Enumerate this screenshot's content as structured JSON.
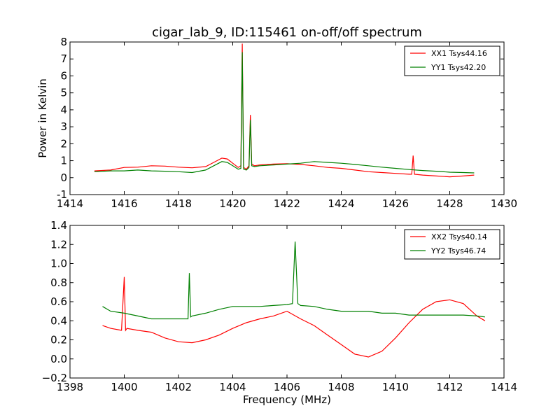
{
  "chart_data": [
    {
      "type": "line",
      "title": "cigar_lab_9, ID:115461 on-off/off spectrum",
      "xlabel": "",
      "ylabel": "Power in Kelvin",
      "xlim": [
        1414,
        1430
      ],
      "ylim": [
        -1,
        8
      ],
      "xticks": [
        "1414",
        "1416",
        "1418",
        "1420",
        "1422",
        "1424",
        "1426",
        "1428",
        "1430"
      ],
      "yticks": [
        "-1",
        "0",
        "1",
        "2",
        "3",
        "4",
        "5",
        "6",
        "7",
        "8"
      ],
      "grid": false,
      "legend": "top-right",
      "series": [
        {
          "name": "XX1 Tsys44.16",
          "color": "#ff0000",
          "x": [
            1414.9,
            1415.5,
            1416.0,
            1416.5,
            1417.0,
            1417.5,
            1418.0,
            1418.5,
            1419.0,
            1419.3,
            1419.6,
            1419.8,
            1420.0,
            1420.2,
            1420.3,
            1420.35,
            1420.4,
            1420.5,
            1420.6,
            1420.65,
            1420.7,
            1420.8,
            1421.0,
            1421.5,
            1422.0,
            1422.5,
            1423.0,
            1423.5,
            1424.0,
            1424.5,
            1425.0,
            1425.5,
            1426.0,
            1426.5,
            1426.6,
            1426.65,
            1426.7,
            1427.0,
            1427.5,
            1428.0,
            1428.5,
            1428.9
          ],
          "y": [
            0.4,
            0.45,
            0.6,
            0.62,
            0.7,
            0.68,
            0.62,
            0.58,
            0.65,
            0.9,
            1.15,
            1.1,
            0.85,
            0.6,
            0.7,
            7.9,
            0.6,
            0.5,
            0.7,
            3.7,
            0.8,
            0.7,
            0.75,
            0.8,
            0.82,
            0.78,
            0.7,
            0.6,
            0.55,
            0.45,
            0.35,
            0.3,
            0.25,
            0.2,
            0.2,
            1.3,
            0.2,
            0.15,
            0.1,
            0.05,
            0.1,
            0.15
          ]
        },
        {
          "name": "YY1 Tsys42.20",
          "color": "#008000",
          "x": [
            1414.9,
            1415.5,
            1416.0,
            1416.5,
            1417.0,
            1417.5,
            1418.0,
            1418.5,
            1419.0,
            1419.3,
            1419.6,
            1419.8,
            1420.0,
            1420.2,
            1420.3,
            1420.35,
            1420.4,
            1420.5,
            1420.6,
            1420.65,
            1420.7,
            1420.8,
            1421.0,
            1421.5,
            1422.0,
            1422.5,
            1423.0,
            1423.5,
            1424.0,
            1424.5,
            1425.0,
            1425.5,
            1426.0,
            1426.5,
            1427.0,
            1427.5,
            1428.0,
            1428.5,
            1428.9
          ],
          "y": [
            0.35,
            0.4,
            0.4,
            0.45,
            0.4,
            0.38,
            0.35,
            0.3,
            0.45,
            0.7,
            0.95,
            0.9,
            0.7,
            0.5,
            0.55,
            7.4,
            0.5,
            0.45,
            0.6,
            3.4,
            0.7,
            0.65,
            0.7,
            0.75,
            0.8,
            0.85,
            0.95,
            0.9,
            0.85,
            0.78,
            0.7,
            0.62,
            0.55,
            0.48,
            0.42,
            0.38,
            0.32,
            0.3,
            0.28
          ]
        }
      ]
    },
    {
      "type": "line",
      "title": "",
      "xlabel": "Frequency (MHz)",
      "ylabel": "",
      "xlim": [
        1398,
        1414
      ],
      "ylim": [
        -0.2,
        1.4
      ],
      "xticks": [
        "1398",
        "1400",
        "1402",
        "1404",
        "1406",
        "1408",
        "1410",
        "1412",
        "1414"
      ],
      "yticks": [
        "−0.2",
        "0.0",
        "0.2",
        "0.4",
        "0.6",
        "0.8",
        "1.0",
        "1.2",
        "1.4"
      ],
      "grid": false,
      "legend": "top-right",
      "series": [
        {
          "name": "XX2 Tsys40.14",
          "color": "#ff0000",
          "x": [
            1399.2,
            1399.5,
            1399.9,
            1400.0,
            1400.05,
            1400.1,
            1400.5,
            1401.0,
            1401.5,
            1402.0,
            1402.5,
            1403.0,
            1403.5,
            1404.0,
            1404.5,
            1405.0,
            1405.5,
            1406.0,
            1406.5,
            1407.0,
            1407.5,
            1408.0,
            1408.5,
            1409.0,
            1409.5,
            1410.0,
            1410.5,
            1411.0,
            1411.5,
            1412.0,
            1412.5,
            1413.0,
            1413.3
          ],
          "y": [
            0.35,
            0.32,
            0.3,
            0.86,
            0.3,
            0.32,
            0.3,
            0.28,
            0.22,
            0.18,
            0.17,
            0.2,
            0.25,
            0.32,
            0.38,
            0.42,
            0.45,
            0.5,
            0.42,
            0.35,
            0.25,
            0.15,
            0.05,
            0.02,
            0.08,
            0.22,
            0.38,
            0.52,
            0.6,
            0.62,
            0.58,
            0.45,
            0.4
          ]
        },
        {
          "name": "YY2 Tsys46.74",
          "color": "#008000",
          "x": [
            1399.2,
            1399.5,
            1400.0,
            1400.5,
            1401.0,
            1401.5,
            1402.0,
            1402.35,
            1402.4,
            1402.45,
            1402.5,
            1403.0,
            1403.5,
            1404.0,
            1404.5,
            1405.0,
            1405.5,
            1406.0,
            1406.2,
            1406.3,
            1406.4,
            1406.5,
            1407.0,
            1407.5,
            1408.0,
            1408.5,
            1409.0,
            1409.5,
            1410.0,
            1410.5,
            1411.0,
            1411.5,
            1412.0,
            1412.5,
            1413.0,
            1413.3
          ],
          "y": [
            0.55,
            0.5,
            0.48,
            0.45,
            0.42,
            0.42,
            0.42,
            0.42,
            0.9,
            0.44,
            0.45,
            0.48,
            0.52,
            0.55,
            0.55,
            0.55,
            0.56,
            0.57,
            0.58,
            1.23,
            0.58,
            0.56,
            0.55,
            0.52,
            0.5,
            0.5,
            0.5,
            0.48,
            0.48,
            0.46,
            0.46,
            0.46,
            0.46,
            0.46,
            0.45,
            0.44
          ]
        }
      ]
    }
  ]
}
